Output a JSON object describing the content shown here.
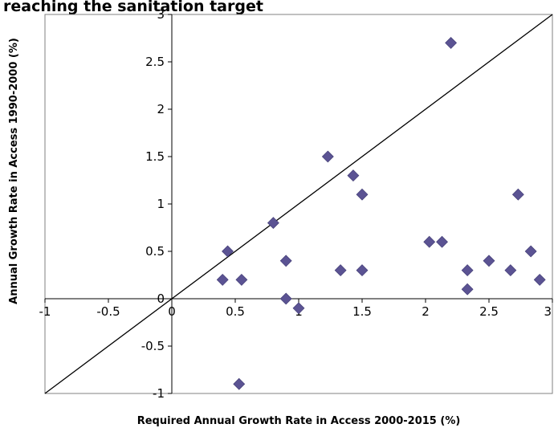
{
  "chart_data": {
    "type": "scatter",
    "title": "reaching the sanitation target",
    "xlabel": "Required Annual Growth Rate in Access 2000-2015 (%)",
    "ylabel": "Annual Growth Rate in Access 1990-2000 (%)",
    "xlim": [
      -1,
      3
    ],
    "ylim": [
      -1,
      3
    ],
    "x_ticks": [
      "-1",
      "-0.5",
      "0",
      "0.5",
      "1",
      "1.5",
      "2",
      "2.5",
      "3"
    ],
    "y_ticks": [
      "-1",
      "-0.5",
      "0",
      "0.5",
      "1",
      "1.5",
      "2",
      "2.5",
      "3"
    ],
    "grid": false,
    "marker": "diamond",
    "marker_color": "#5b5393",
    "reference_line": {
      "from": [
        -1,
        -1
      ],
      "to": [
        3,
        3
      ]
    },
    "points": [
      {
        "x": 0.4,
        "y": 0.2
      },
      {
        "x": 0.44,
        "y": 0.5
      },
      {
        "x": 0.55,
        "y": 0.2
      },
      {
        "x": 0.53,
        "y": -0.9
      },
      {
        "x": 0.8,
        "y": 0.8
      },
      {
        "x": 0.9,
        "y": 0.4
      },
      {
        "x": 0.9,
        "y": 0.0
      },
      {
        "x": 1.0,
        "y": -0.1
      },
      {
        "x": 1.23,
        "y": 1.5
      },
      {
        "x": 1.33,
        "y": 0.3
      },
      {
        "x": 1.43,
        "y": 1.3
      },
      {
        "x": 1.5,
        "y": 1.1
      },
      {
        "x": 1.5,
        "y": 0.3
      },
      {
        "x": 2.03,
        "y": 0.6
      },
      {
        "x": 2.13,
        "y": 0.6
      },
      {
        "x": 2.2,
        "y": 2.7
      },
      {
        "x": 2.33,
        "y": 0.3
      },
      {
        "x": 2.33,
        "y": 0.1
      },
      {
        "x": 2.5,
        "y": 0.4
      },
      {
        "x": 2.67,
        "y": 0.3
      },
      {
        "x": 2.73,
        "y": 1.1
      },
      {
        "x": 2.83,
        "y": 0.5
      },
      {
        "x": 2.9,
        "y": 0.2
      }
    ]
  }
}
